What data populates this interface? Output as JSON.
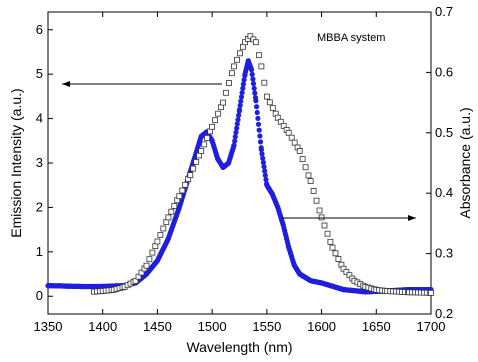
{
  "chart_data": {
    "type": "scatter",
    "xlabel": "Wavelength (nm)",
    "ylabel_left": "Emission Intensity (a.u.)",
    "ylabel_right": "Absorbance (a.u.)",
    "xlim": [
      1350,
      1700
    ],
    "ylim_left": [
      -0.4,
      6.4
    ],
    "ylim_right": [
      0.2,
      0.7
    ],
    "x_ticks": [
      1350,
      1400,
      1450,
      1500,
      1550,
      1600,
      1650,
      1700
    ],
    "y_left_ticks": [
      0,
      1,
      2,
      3,
      4,
      5,
      6
    ],
    "y_right_ticks": [
      0.2,
      0.3,
      0.4,
      0.5,
      0.6,
      0.7
    ],
    "annotation": "MBBA system",
    "colors": {
      "emission": "#1f1fe0",
      "absorbance": "#333333"
    },
    "series": [
      {
        "key": "emission",
        "axis": "left",
        "marker": "filled-circle",
        "points": [
          [
            1350,
            0.24
          ],
          [
            1380,
            0.22
          ],
          [
            1400,
            0.22
          ],
          [
            1420,
            0.24
          ],
          [
            1430,
            0.3
          ],
          [
            1440,
            0.5
          ],
          [
            1450,
            0.8
          ],
          [
            1460,
            1.3
          ],
          [
            1470,
            2.0
          ],
          [
            1480,
            2.8
          ],
          [
            1490,
            3.6
          ],
          [
            1495,
            3.7
          ],
          [
            1500,
            3.5
          ],
          [
            1505,
            3.1
          ],
          [
            1510,
            2.9
          ],
          [
            1515,
            3.0
          ],
          [
            1520,
            3.4
          ],
          [
            1525,
            4.2
          ],
          [
            1530,
            5.0
          ],
          [
            1533,
            5.3
          ],
          [
            1536,
            5.1
          ],
          [
            1540,
            4.4
          ],
          [
            1545,
            3.3
          ],
          [
            1550,
            2.5
          ],
          [
            1555,
            2.3
          ],
          [
            1560,
            2.0
          ],
          [
            1565,
            1.6
          ],
          [
            1570,
            1.1
          ],
          [
            1575,
            0.7
          ],
          [
            1580,
            0.5
          ],
          [
            1590,
            0.35
          ],
          [
            1600,
            0.3
          ],
          [
            1620,
            0.15
          ],
          [
            1640,
            0.1
          ],
          [
            1660,
            0.12
          ],
          [
            1680,
            0.15
          ],
          [
            1700,
            0.15
          ]
        ]
      },
      {
        "key": "absorbance",
        "axis": "right",
        "marker": "open-square",
        "points": [
          [
            1392,
            0.237
          ],
          [
            1400,
            0.238
          ],
          [
            1410,
            0.24
          ],
          [
            1420,
            0.245
          ],
          [
            1430,
            0.255
          ],
          [
            1440,
            0.28
          ],
          [
            1450,
            0.32
          ],
          [
            1460,
            0.36
          ],
          [
            1470,
            0.395
          ],
          [
            1480,
            0.43
          ],
          [
            1490,
            0.47
          ],
          [
            1500,
            0.51
          ],
          [
            1510,
            0.55
          ],
          [
            1520,
            0.61
          ],
          [
            1530,
            0.65
          ],
          [
            1535,
            0.66
          ],
          [
            1540,
            0.65
          ],
          [
            1545,
            0.61
          ],
          [
            1550,
            0.56
          ],
          [
            1560,
            0.525
          ],
          [
            1570,
            0.5
          ],
          [
            1580,
            0.47
          ],
          [
            1590,
            0.42
          ],
          [
            1600,
            0.36
          ],
          [
            1610,
            0.31
          ],
          [
            1620,
            0.275
          ],
          [
            1630,
            0.255
          ],
          [
            1640,
            0.245
          ],
          [
            1650,
            0.24
          ],
          [
            1660,
            0.238
          ],
          [
            1680,
            0.236
          ],
          [
            1700,
            0.235
          ]
        ]
      }
    ]
  }
}
